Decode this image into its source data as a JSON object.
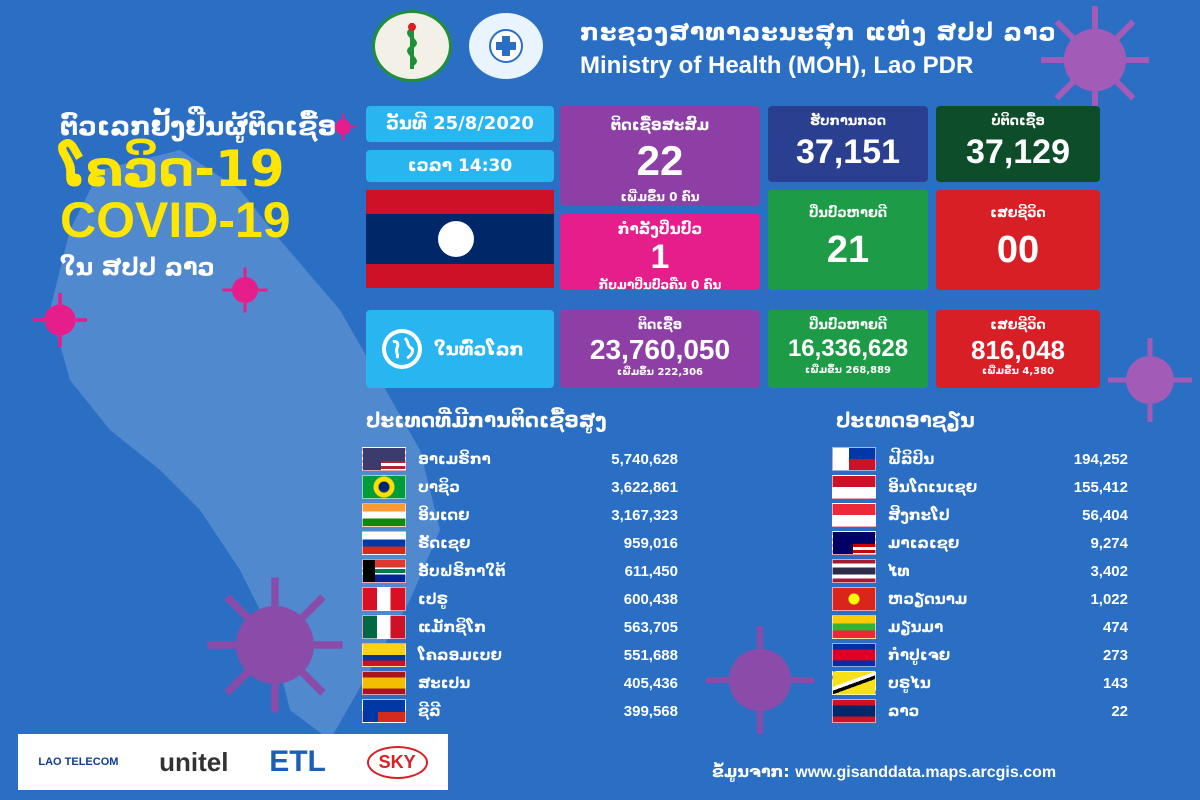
{
  "header": {
    "title_lao": "ກະຊວງສາທາລະນະສຸກ ແຫ່ງ ສປປ ລາວ",
    "title_en": "Ministry of Health (MOH), Lao PDR"
  },
  "headline": {
    "line1": "ຕົວເລກຢັ້ງຢືນຜູ້ຕິດເຊື້ອ",
    "line2": "ໂຄວິດ-19",
    "line3": "COVID-19",
    "line4": "ໃນ ສປປ ລາວ"
  },
  "date_label": "ວັນທີ 25/8/2020",
  "time_label": "ເວລາ 14:30",
  "laos": {
    "cumulative": {
      "label": "ຕິດເຊື້ອສະສົມ",
      "value": "22",
      "sub": "ເພີ່ມຂຶ້ນ 0 ຄົນ"
    },
    "treating": {
      "label": "ກຳລັງປິ່ນປົວ",
      "value": "1",
      "sub": "ກັບມາປິ່ນປົວຄືນ 0 ຄົນ"
    },
    "tested": {
      "label": "ຮັບການກວດ",
      "value": "37,151"
    },
    "negative": {
      "label": "ບໍ່ຕິດເຊື້ອ",
      "value": "37,129"
    },
    "recovered": {
      "label": "ປິ່ນປົວຫາຍດີ",
      "value": "21"
    },
    "deaths": {
      "label": "ເສຍຊີວິດ",
      "value": "00"
    }
  },
  "world": {
    "label": "ໃນທົ່ວໂລກ",
    "infected": {
      "label": "ຕິດເຊື້ອ",
      "value": "23,760,050",
      "sub": "ເພີ່ມຂຶ້ນ 222,306"
    },
    "recovered": {
      "label": "ປິ່ນປົວຫາຍດີ",
      "value": "16,336,628",
      "sub": "ເພີ່ມຂຶ້ນ 268,889"
    },
    "deaths": {
      "label": "ເສຍຊີວິດ",
      "value": "816,048",
      "sub": "ເພີ່ມຂຶ້ນ 4,380"
    }
  },
  "top_countries": {
    "title": "ປະເທດທີ່ມີການຕິດເຊື້ອສູງ",
    "rows": [
      {
        "name": "ອາເມຣິກາ",
        "value": "5,740,628",
        "flag": "us"
      },
      {
        "name": "ບາຊິວ",
        "value": "3,622,861",
        "flag": "br"
      },
      {
        "name": "ອິນເດຍ",
        "value": "3,167,323",
        "flag": "in"
      },
      {
        "name": "ຣັດເຊຍ",
        "value": "959,016",
        "flag": "ru"
      },
      {
        "name": "ອັບຟຣິກາໃຕ້",
        "value": "611,450",
        "flag": "za"
      },
      {
        "name": "ເປຣູ",
        "value": "600,438",
        "flag": "pe"
      },
      {
        "name": "ແມັກຊິໂກ",
        "value": "563,705",
        "flag": "mx"
      },
      {
        "name": "ໂຄລອມເບຍ",
        "value": "551,688",
        "flag": "co"
      },
      {
        "name": "ສະເປນ",
        "value": "405,436",
        "flag": "es"
      },
      {
        "name": "ຊີລີ",
        "value": "399,568",
        "flag": "cl"
      }
    ]
  },
  "asean": {
    "title": "ປະເທດອາຊຽນ",
    "rows": [
      {
        "name": "ຟີລິປິນ",
        "value": "194,252",
        "flag": "ph"
      },
      {
        "name": "ອິນໂດເນເຊຍ",
        "value": "155,412",
        "flag": "id"
      },
      {
        "name": "ສິງກະໂປ",
        "value": "56,404",
        "flag": "sg"
      },
      {
        "name": "ມາເລເຊຍ",
        "value": "9,274",
        "flag": "my"
      },
      {
        "name": "ໄທ",
        "value": "3,402",
        "flag": "th"
      },
      {
        "name": "ຫວຽດນາມ",
        "value": "1,022",
        "flag": "vn"
      },
      {
        "name": "ມຽນມາ",
        "value": "474",
        "flag": "mm"
      },
      {
        "name": "ກຳປູເຈຍ",
        "value": "273",
        "flag": "kh"
      },
      {
        "name": "ບຣູໄນ",
        "value": "143",
        "flag": "bn"
      },
      {
        "name": "ລາວ",
        "value": "22",
        "flag": "la"
      }
    ]
  },
  "footer": {
    "source_label": "ຂໍ້ມູນຈາກ:",
    "source_url": "www.gisanddata.maps.arcgis.com",
    "logos": [
      "LAO TELECOM",
      "unitel",
      "ETL",
      "SKY"
    ]
  },
  "colors": {
    "background": "#2a6fc4",
    "headline_yellow": "#ffe600",
    "purple": "#8e3fa5",
    "pink": "#e61e8c",
    "navy": "#2a3f8f",
    "dark_green": "#0d4d2a",
    "green": "#1e9b46",
    "red": "#d91f26",
    "cyan": "#29b6f0"
  }
}
